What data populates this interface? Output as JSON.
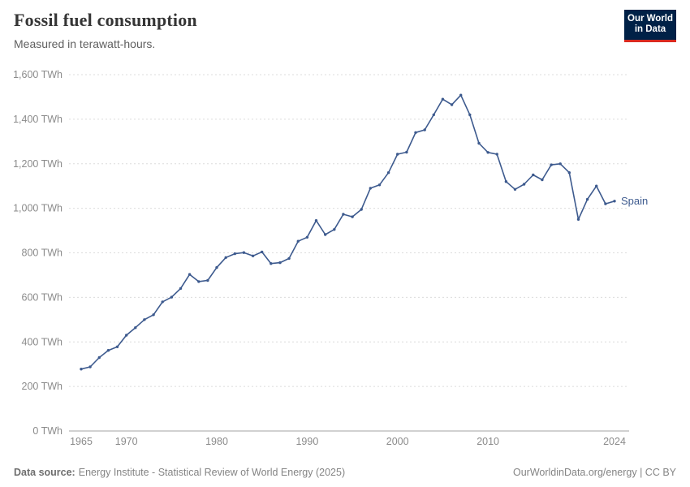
{
  "header": {
    "title": "Fossil fuel consumption",
    "subtitle": "Measured in terawatt-hours.",
    "logo": {
      "line1": "Our World",
      "line2": "in Data",
      "bg_color": "#002147",
      "accent_color": "#d9291f",
      "text_color": "#ffffff"
    }
  },
  "chart_data": {
    "type": "line",
    "title": "Fossil fuel consumption",
    "subtitle": "Measured in terawatt-hours.",
    "unit": "TWh",
    "grid": "horizontal dashed",
    "legend_position": "end-of-line label",
    "ylim": [
      0,
      1600
    ],
    "xlim": [
      1965,
      2024
    ],
    "x": [
      1965,
      1966,
      1967,
      1968,
      1969,
      1970,
      1971,
      1972,
      1973,
      1974,
      1975,
      1976,
      1977,
      1978,
      1979,
      1980,
      1981,
      1982,
      1983,
      1984,
      1985,
      1986,
      1987,
      1988,
      1989,
      1990,
      1991,
      1992,
      1993,
      1994,
      1995,
      1996,
      1997,
      1998,
      1999,
      2000,
      2001,
      2002,
      2003,
      2004,
      2005,
      2006,
      2007,
      2008,
      2009,
      2010,
      2011,
      2012,
      2013,
      2014,
      2015,
      2016,
      2017,
      2018,
      2019,
      2020,
      2021,
      2022,
      2023,
      2024
    ],
    "series": [
      {
        "name": "Spain",
        "color": "#3d5a8e",
        "values": [
          278,
          288,
          330,
          362,
          378,
          430,
          464,
          500,
          522,
          580,
          601,
          640,
          703,
          671,
          676,
          734,
          779,
          796,
          801,
          786,
          804,
          752,
          756,
          775,
          852,
          870,
          945,
          882,
          905,
          973,
          962,
          995,
          1090,
          1105,
          1160,
          1243,
          1252,
          1340,
          1352,
          1420,
          1490,
          1465,
          1508,
          1420,
          1292,
          1251,
          1243,
          1120,
          1085,
          1108,
          1150,
          1128,
          1195,
          1200,
          1160,
          950,
          1040,
          1100,
          1020,
          1032
        ]
      }
    ],
    "x_ticks": [
      1965,
      1970,
      1980,
      1990,
      2000,
      2010,
      2024
    ],
    "y_ticks": [
      {
        "value": 0,
        "label": "0 TWh"
      },
      {
        "value": 200,
        "label": "200 TWh"
      },
      {
        "value": 400,
        "label": "400 TWh"
      },
      {
        "value": 600,
        "label": "600 TWh"
      },
      {
        "value": 800,
        "label": "800 TWh"
      },
      {
        "value": 1000,
        "label": "1,000 TWh"
      },
      {
        "value": 1200,
        "label": "1,200 TWh"
      },
      {
        "value": 1400,
        "label": "1,400 TWh"
      },
      {
        "value": 1600,
        "label": "1,600 TWh"
      }
    ]
  },
  "footer": {
    "source_label": "Data source:",
    "source_text": "Energy Institute - Statistical Review of World Energy (2025)",
    "right_text": "OurWorldinData.org/energy | CC BY"
  }
}
